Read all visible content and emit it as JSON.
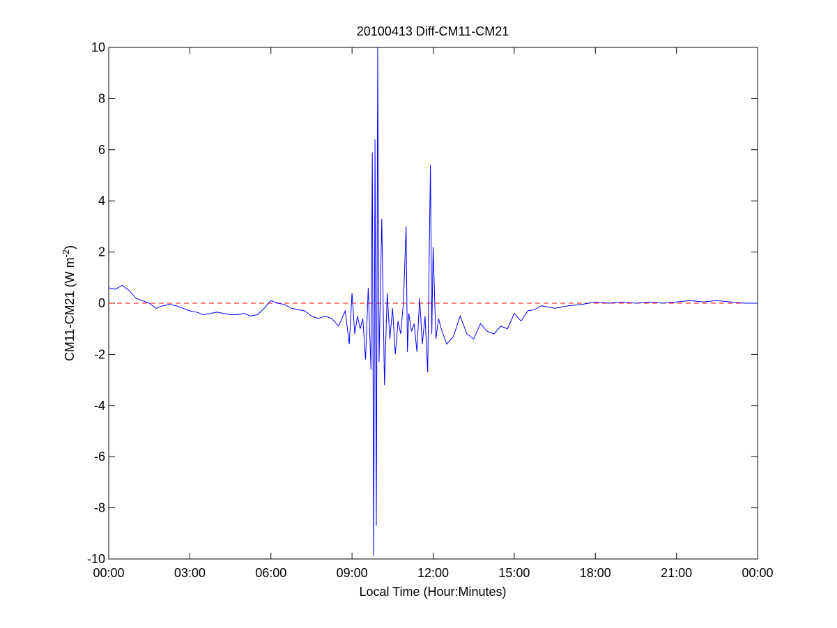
{
  "chart_data": {
    "type": "line",
    "title": "20100413 Diff-CM11-CM21",
    "xlabel": "Local Time (Hour:Minutes)",
    "ylabel": {
      "text": "CM11-CM21 (W m",
      "superscript": "-2",
      "suffix": ")"
    },
    "xlim_hours": [
      0,
      24
    ],
    "ylim": [
      -10,
      10
    ],
    "x_ticks": [
      {
        "hour": 0,
        "label": "00:00"
      },
      {
        "hour": 3,
        "label": "03:00"
      },
      {
        "hour": 6,
        "label": "06:00"
      },
      {
        "hour": 9,
        "label": "09:00"
      },
      {
        "hour": 12,
        "label": "12:00"
      },
      {
        "hour": 15,
        "label": "15:00"
      },
      {
        "hour": 18,
        "label": "18:00"
      },
      {
        "hour": 21,
        "label": "21:00"
      },
      {
        "hour": 24,
        "label": "00:00"
      }
    ],
    "y_ticks": [
      {
        "value": 10,
        "label": "10"
      },
      {
        "value": 8,
        "label": "8"
      },
      {
        "value": 6,
        "label": "6"
      },
      {
        "value": 4,
        "label": "4"
      },
      {
        "value": 2,
        "label": "2"
      },
      {
        "value": 0,
        "label": "0"
      },
      {
        "value": -2,
        "label": "-2"
      },
      {
        "value": -4,
        "label": "-4"
      },
      {
        "value": -6,
        "label": "-6"
      },
      {
        "value": -8,
        "label": "-8"
      },
      {
        "value": -10,
        "label": "-10"
      }
    ],
    "grid": false,
    "reference_line": {
      "y": 0,
      "color": "#ff0000",
      "style": "dashed"
    },
    "series_color": "#0000ff",
    "series": [
      {
        "x_hours": [
          0.0,
          0.25,
          0.5,
          0.75,
          1.0,
          1.25,
          1.5,
          1.75,
          2.0,
          2.25,
          2.5,
          2.75,
          3.0,
          3.25,
          3.5,
          3.75,
          4.0,
          4.25,
          4.5,
          4.75,
          5.0,
          5.25,
          5.5,
          5.75,
          6.0,
          6.25,
          6.5,
          6.75,
          7.0,
          7.25,
          7.5,
          7.75,
          8.0,
          8.25,
          8.5,
          8.75,
          8.9,
          9.0,
          9.1,
          9.2,
          9.3,
          9.4,
          9.5,
          9.6,
          9.7,
          9.75,
          9.8,
          9.85,
          9.9,
          9.95,
          10.0,
          10.1,
          10.2,
          10.3,
          10.4,
          10.5,
          10.6,
          10.7,
          10.8,
          10.9,
          11.0,
          11.05,
          11.1,
          11.2,
          11.3,
          11.4,
          11.5,
          11.6,
          11.7,
          11.8,
          11.9,
          11.95,
          12.0,
          12.1,
          12.2,
          12.3,
          12.5,
          12.75,
          13.0,
          13.25,
          13.5,
          13.75,
          14.0,
          14.25,
          14.5,
          14.75,
          15.0,
          15.25,
          15.5,
          15.75,
          16.0,
          16.25,
          16.5,
          16.75,
          17.0,
          17.5,
          18.0,
          18.5,
          19.0,
          19.5,
          20.0,
          20.5,
          21.0,
          21.5,
          22.0,
          22.5,
          23.0,
          23.5,
          24.0
        ],
        "y": [
          0.6,
          0.55,
          0.7,
          0.5,
          0.2,
          0.1,
          0.0,
          -0.2,
          -0.1,
          -0.05,
          -0.1,
          -0.2,
          -0.3,
          -0.35,
          -0.45,
          -0.4,
          -0.35,
          -0.4,
          -0.45,
          -0.45,
          -0.4,
          -0.5,
          -0.45,
          -0.2,
          0.1,
          0.0,
          -0.05,
          -0.2,
          -0.25,
          -0.3,
          -0.5,
          -0.6,
          -0.5,
          -0.6,
          -0.9,
          -0.3,
          -1.6,
          0.4,
          -1.2,
          -0.5,
          -1.0,
          -0.6,
          -2.2,
          0.6,
          -2.6,
          5.9,
          -9.9,
          6.4,
          -8.7,
          10.0,
          -2.3,
          3.3,
          -3.2,
          0.4,
          -1.4,
          -0.2,
          -2.0,
          -0.7,
          -1.2,
          0.0,
          3.0,
          -1.9,
          -0.4,
          -1.1,
          -0.8,
          -1.9,
          0.2,
          -1.6,
          -0.5,
          -2.7,
          5.4,
          -1.2,
          2.2,
          -1.4,
          -0.6,
          -1.0,
          -1.6,
          -1.3,
          -0.5,
          -1.2,
          -1.4,
          -0.8,
          -1.1,
          -1.2,
          -0.9,
          -1.0,
          -0.4,
          -0.7,
          -0.3,
          -0.25,
          -0.1,
          -0.15,
          -0.2,
          -0.15,
          -0.1,
          -0.05,
          0.05,
          0.0,
          0.05,
          0.0,
          0.05,
          0.0,
          0.05,
          0.1,
          0.05,
          0.1,
          0.05,
          0.0,
          0.0
        ]
      }
    ]
  }
}
